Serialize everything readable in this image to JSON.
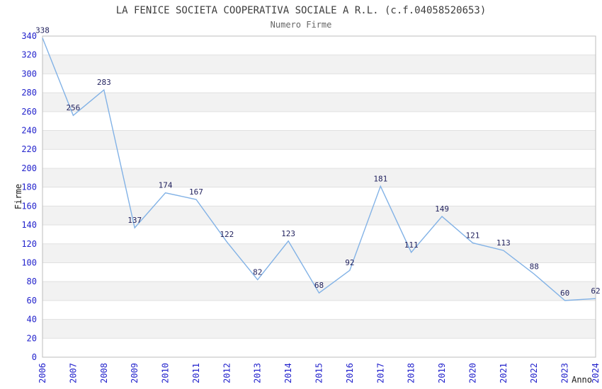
{
  "chart": {
    "title": "LA FENICE SOCIETA COOPERATIVA SOCIALE A R.L. (c.f.04058520653)",
    "subtitle": "Numero Firme"
  },
  "chart_data": {
    "type": "line",
    "x": [
      2006,
      2007,
      2008,
      2009,
      2010,
      2011,
      2012,
      2013,
      2014,
      2015,
      2016,
      2017,
      2018,
      2019,
      2020,
      2021,
      2022,
      2023,
      2024
    ],
    "values": [
      338,
      256,
      283,
      137,
      174,
      167,
      122,
      82,
      123,
      68,
      92,
      181,
      111,
      149,
      121,
      113,
      88,
      60,
      62
    ],
    "title": "LA FENICE SOCIETA COOPERATIVA SOCIALE A R.L. (c.f.04058520653)",
    "subtitle": "Numero Firme",
    "xlabel": "Anno",
    "ylabel": "Firme",
    "ylim": [
      0,
      340
    ],
    "ytick_step": 20,
    "grid": true,
    "banded_background": true,
    "legend": "none",
    "colors": {
      "line": "#82b2e6",
      "tick_label": "#2323cc",
      "point_label": "#23235f",
      "band": "#f2f2f2",
      "gridline": "#e0e0e0",
      "border": "#bcbcbc",
      "axis_title": "#1a1a1a"
    }
  }
}
